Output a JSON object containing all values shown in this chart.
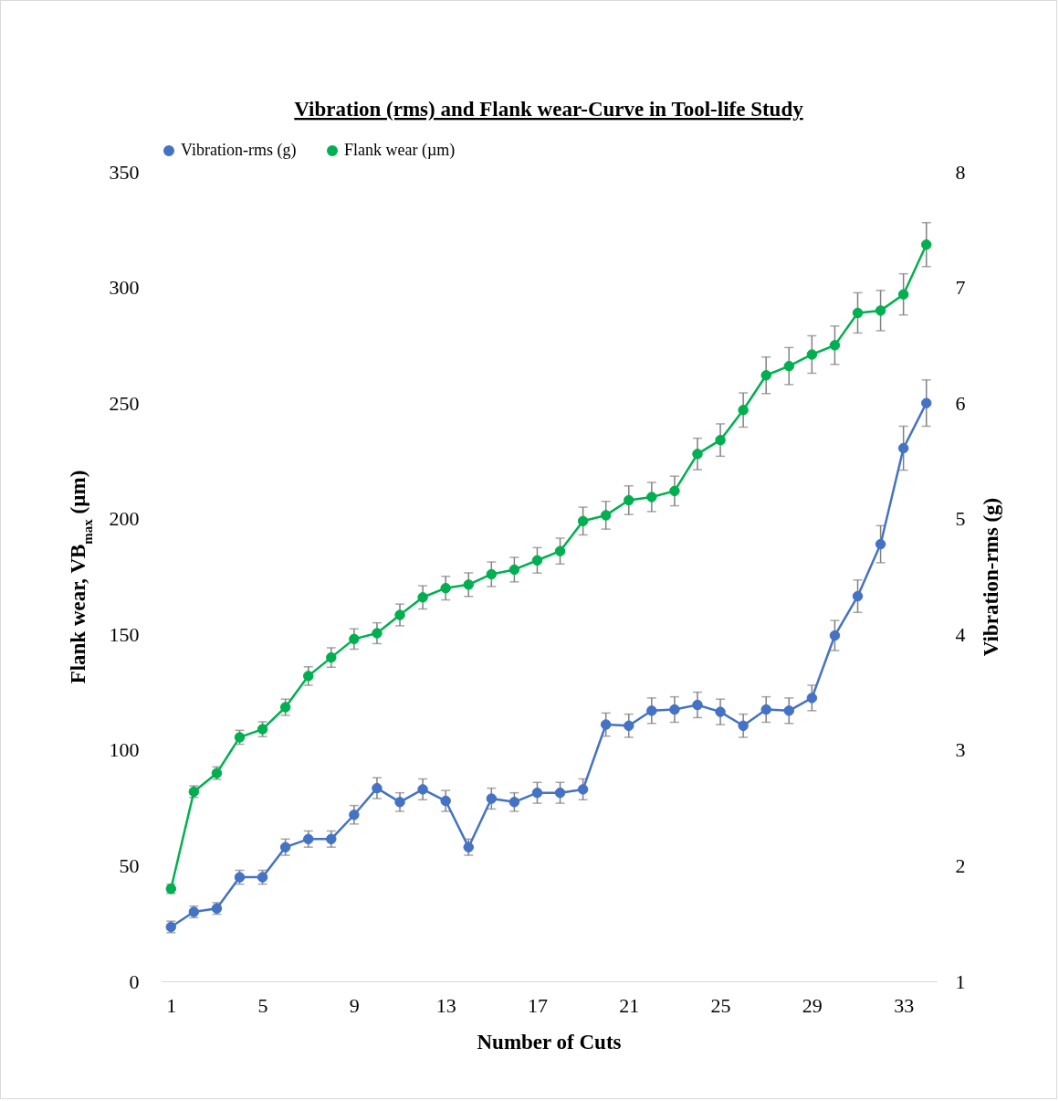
{
  "chart_data": {
    "type": "line",
    "title": "Vibration (rms) and Flank wear-Curve in Tool-life Study",
    "xlabel": "Number of Cuts",
    "ylabel": "Flank wear, VB$_{max}$ (µm)",
    "y2label": "Vibration-rms (g)",
    "categories": [
      "1",
      null,
      null,
      null,
      "5",
      null,
      null,
      null,
      "9",
      null,
      null,
      null,
      "13",
      null,
      null,
      null,
      "17",
      null,
      null,
      null,
      "21",
      null,
      null,
      null,
      "25",
      null,
      null,
      null,
      "29",
      null,
      null,
      null,
      "33",
      null
    ],
    "series": [
      {
        "name": "Vibration-rms (g)",
        "color": "#4472c4",
        "axis": "y2",
        "values": [
          1.47,
          1.6,
          1.63,
          1.9,
          1.9,
          2.16,
          2.23,
          2.23,
          2.44,
          2.67,
          2.55,
          2.66,
          2.56,
          2.16,
          2.58,
          2.55,
          2.63,
          2.63,
          2.66,
          3.22,
          3.21,
          3.34,
          3.35,
          3.39,
          3.33,
          3.21,
          3.35,
          3.34,
          3.45,
          3.99,
          4.33,
          4.78,
          5.61,
          6.0
        ],
        "errors": [
          0.05,
          0.05,
          0.05,
          0.06,
          0.06,
          0.07,
          0.07,
          0.07,
          0.08,
          0.09,
          0.08,
          0.09,
          0.09,
          0.07,
          0.09,
          0.08,
          0.09,
          0.09,
          0.09,
          0.1,
          0.1,
          0.11,
          0.11,
          0.11,
          0.11,
          0.1,
          0.11,
          0.11,
          0.11,
          0.13,
          0.14,
          0.16,
          0.19,
          0.2
        ]
      },
      {
        "name": "Flank wear (µm)",
        "color": "#00b050",
        "axis": "y",
        "values": [
          40,
          82,
          90,
          105.5,
          109,
          118.5,
          132,
          140,
          148,
          150.5,
          158.4,
          166,
          170,
          171.5,
          176,
          178,
          182,
          186,
          199,
          201.5,
          208,
          209.4,
          212,
          228,
          234,
          247,
          262,
          266,
          271,
          275,
          289,
          290,
          297,
          318.5
        ],
        "errors": [
          2,
          2.5,
          2.7,
          3,
          3.2,
          3.5,
          4,
          4.2,
          4.4,
          4.5,
          4.7,
          5,
          5.1,
          5.1,
          5.3,
          5.3,
          5.5,
          5.6,
          6,
          6,
          6.2,
          6.3,
          6.4,
          6.8,
          7,
          7.4,
          7.9,
          8,
          8.1,
          8.3,
          8.7,
          8.7,
          8.9,
          9.5
        ]
      }
    ],
    "ylim": [
      0,
      350
    ],
    "yticks": [
      0,
      50,
      100,
      150,
      200,
      250,
      300,
      350
    ],
    "y2lim": [
      1,
      8
    ],
    "y2ticks": [
      1,
      2,
      3,
      4,
      5,
      6,
      7,
      8
    ],
    "legend": "top",
    "marker": "circle",
    "line_style": "solid"
  }
}
